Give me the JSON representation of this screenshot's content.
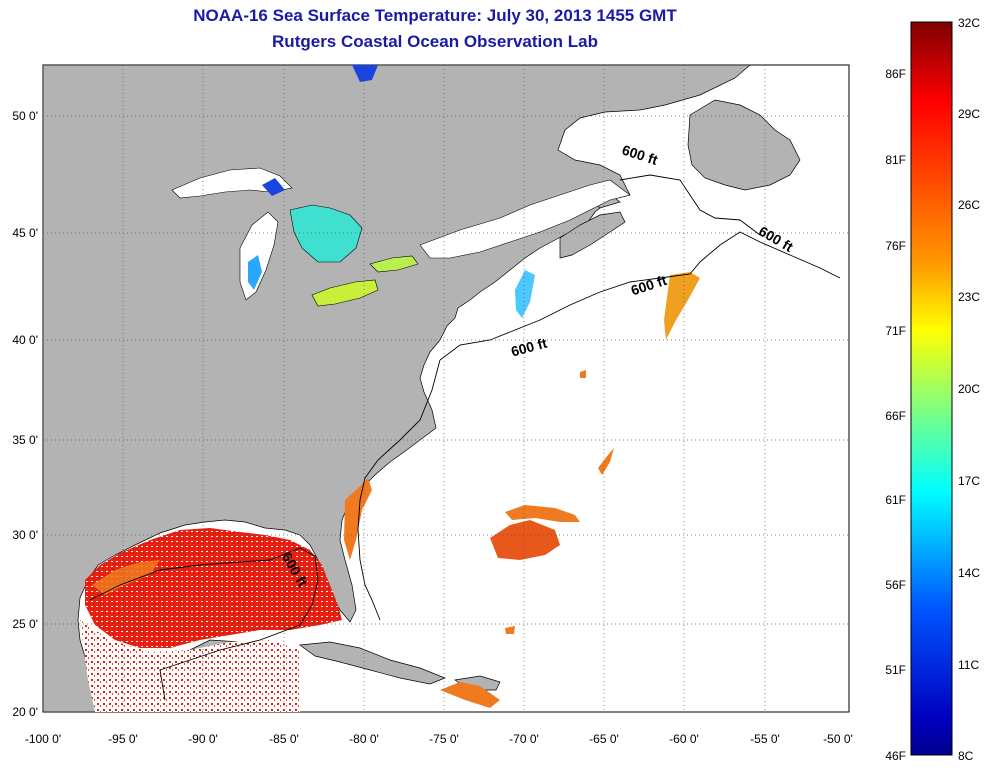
{
  "header": {
    "title": "NOAA-16 Sea Surface Temperature:  July 30, 2013 1455 GMT",
    "subtitle": "Rutgers Coastal Ocean Observation Lab"
  },
  "map": {
    "lon_labels": [
      "-100 0'",
      "-95 0'",
      "-90 0'",
      "-85 0'",
      "-80 0'",
      "-75 0'",
      "-70 0'",
      "-65 0'",
      "-60 0'",
      "-55 0'",
      "-50 0'"
    ],
    "lat_labels": [
      "20 0'",
      "25 0'",
      "30 0'",
      "35 0'",
      "40 0'",
      "45 0'",
      "50 0'"
    ],
    "contour_labels": [
      "600 ft",
      "600 ft",
      "600 ft",
      "600 ft",
      "600 ft"
    ]
  },
  "colorbar": {
    "celsius_labels": [
      "32C",
      "29C",
      "26C",
      "23C",
      "20C",
      "17C",
      "14C",
      "11C",
      "8C"
    ],
    "fahrenheit_labels": [
      "86F",
      "81F",
      "76F",
      "71F",
      "66F",
      "61F",
      "56F",
      "51F",
      "46F"
    ],
    "colors": [
      "#7f0000",
      "#ff0000",
      "#ff7f00",
      "#ffff00",
      "#7fff7f",
      "#00ffff",
      "#007fff",
      "#0000ff",
      "#00008f"
    ]
  },
  "colors": {
    "land": "#b3b3b3",
    "ocean": "#ffffff",
    "title": "#1a1aa6"
  }
}
